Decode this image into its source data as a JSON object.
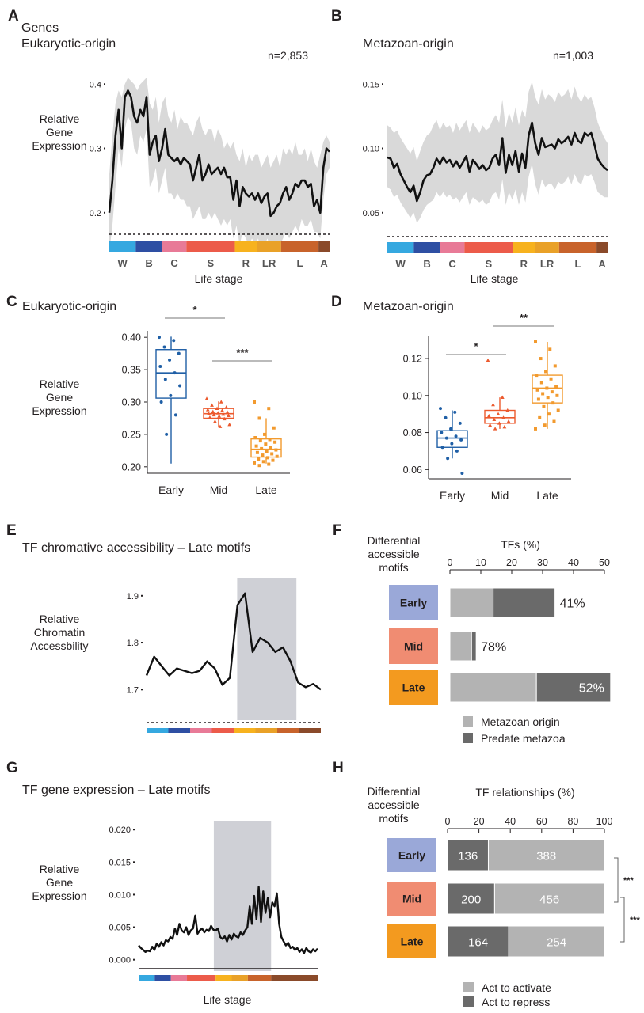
{
  "colors": {
    "early_box": "#1f5fa6",
    "mid_box": "#ec5a2e",
    "late_box": "#f29a2e",
    "row_early": "#9aa8d8",
    "row_mid": "#f08c72",
    "row_late": "#f39a1f",
    "bar_light": "#b3b3b3",
    "bar_dark": "#6a6a6a",
    "highlight": "#cfd0d6",
    "ribbon": "#d9d9d9"
  },
  "stage_colors": [
    "#35a8e0",
    "#2e4fa3",
    "#e87a97",
    "#ec5b4a",
    "#f7b21e",
    "#e9a128",
    "#c8632b",
    "#8a4a2a"
  ],
  "chart_data": [
    {
      "id": "A",
      "type": "line",
      "panel_label": "A",
      "title_lines": [
        "Genes",
        "Eukaryotic-origin"
      ],
      "n_label": "n=2,853",
      "ylabel_lines": [
        "Relative",
        "Gene",
        "Expression"
      ],
      "ylim": [
        0.18,
        0.42
      ],
      "yticks": [
        "0.2",
        "0.3",
        "0.4"
      ],
      "ytick_values": [
        0.2,
        0.3,
        0.4
      ],
      "xlabel": "Life stage",
      "stage_labels": [
        "W",
        "B",
        "C",
        "S",
        "R",
        "LR",
        "L",
        "A"
      ],
      "stage_bounds": [
        0,
        0.12,
        0.24,
        0.35,
        0.57,
        0.67,
        0.78,
        0.95,
        1
      ],
      "y": [
        0.2,
        0.25,
        0.32,
        0.36,
        0.3,
        0.38,
        0.39,
        0.38,
        0.35,
        0.34,
        0.36,
        0.35,
        0.38,
        0.29,
        0.31,
        0.32,
        0.28,
        0.3,
        0.33,
        0.29,
        0.285,
        0.28,
        0.285,
        0.275,
        0.285,
        0.28,
        0.275,
        0.25,
        0.27,
        0.29,
        0.25,
        0.26,
        0.275,
        0.26,
        0.265,
        0.27,
        0.26,
        0.27,
        0.255,
        0.255,
        0.22,
        0.25,
        0.21,
        0.24,
        0.23,
        0.225,
        0.23,
        0.22,
        0.23,
        0.215,
        0.225,
        0.23,
        0.195,
        0.2,
        0.21,
        0.215,
        0.23,
        0.24,
        0.22,
        0.23,
        0.245,
        0.24,
        0.25,
        0.25,
        0.24,
        0.245,
        0.21,
        0.22,
        0.2,
        0.27,
        0.3,
        0.295
      ],
      "band_upper": [
        0.26,
        0.32,
        0.37,
        0.39,
        0.38,
        0.4,
        0.41,
        0.405,
        0.4,
        0.39,
        0.4,
        0.405,
        0.41,
        0.37,
        0.36,
        0.38,
        0.34,
        0.37,
        0.38,
        0.35,
        0.34,
        0.36,
        0.33,
        0.35,
        0.34,
        0.34,
        0.33,
        0.32,
        0.34,
        0.35,
        0.33,
        0.32,
        0.33,
        0.33,
        0.31,
        0.33,
        0.32,
        0.3,
        0.31,
        0.3,
        0.31,
        0.29,
        0.28,
        0.3,
        0.27,
        0.29,
        0.28,
        0.29,
        0.29,
        0.27,
        0.28,
        0.29,
        0.27,
        0.28,
        0.29,
        0.27,
        0.3,
        0.29,
        0.3,
        0.29,
        0.31,
        0.29,
        0.29,
        0.3,
        0.28,
        0.3,
        0.28,
        0.27,
        0.29,
        0.31,
        0.32,
        0.31
      ],
      "band_lower": [
        0.14,
        0.18,
        0.24,
        0.3,
        0.27,
        0.33,
        0.35,
        0.34,
        0.3,
        0.29,
        0.32,
        0.31,
        0.33,
        0.24,
        0.25,
        0.27,
        0.23,
        0.25,
        0.27,
        0.23,
        0.23,
        0.22,
        0.23,
        0.22,
        0.22,
        0.21,
        0.21,
        0.19,
        0.2,
        0.21,
        0.19,
        0.19,
        0.2,
        0.19,
        0.2,
        0.19,
        0.18,
        0.19,
        0.18,
        0.19,
        0.16,
        0.18,
        0.15,
        0.17,
        0.16,
        0.15,
        0.16,
        0.15,
        0.16,
        0.14,
        0.15,
        0.16,
        0.14,
        0.14,
        0.15,
        0.15,
        0.16,
        0.17,
        0.16,
        0.17,
        0.18,
        0.17,
        0.19,
        0.18,
        0.18,
        0.19,
        0.17,
        0.17,
        0.16,
        0.22,
        0.26,
        0.27
      ]
    },
    {
      "id": "B",
      "type": "line",
      "panel_label": "B",
      "title_lines": [
        "Metazoan-origin"
      ],
      "n_label": "n=1,003",
      "ylabel_lines": [],
      "ylim": [
        0.04,
        0.16
      ],
      "yticks": [
        "0.05",
        "0.10",
        "0.15"
      ],
      "ytick_values": [
        0.05,
        0.1,
        0.15
      ],
      "xlabel": "Life stage",
      "stage_labels": [
        "W",
        "B",
        "C",
        "S",
        "R",
        "LR",
        "L",
        "A"
      ],
      "stage_bounds": [
        0,
        0.12,
        0.24,
        0.35,
        0.57,
        0.67,
        0.78,
        0.95,
        1
      ],
      "y": [
        0.093,
        0.092,
        0.085,
        0.088,
        0.08,
        0.075,
        0.07,
        0.066,
        0.071,
        0.059,
        0.066,
        0.075,
        0.079,
        0.08,
        0.085,
        0.092,
        0.088,
        0.093,
        0.089,
        0.091,
        0.086,
        0.09,
        0.085,
        0.089,
        0.094,
        0.082,
        0.091,
        0.088,
        0.084,
        0.087,
        0.083,
        0.085,
        0.092,
        0.095,
        0.087,
        0.108,
        0.081,
        0.095,
        0.087,
        0.098,
        0.082,
        0.096,
        0.085,
        0.11,
        0.12,
        0.104,
        0.095,
        0.108,
        0.101,
        0.102,
        0.103,
        0.1,
        0.107,
        0.104,
        0.106,
        0.109,
        0.103,
        0.112,
        0.106,
        0.104,
        0.112,
        0.11,
        0.112,
        0.103,
        0.092,
        0.088,
        0.085,
        0.083
      ],
      "band_upper": [
        0.118,
        0.116,
        0.112,
        0.114,
        0.108,
        0.104,
        0.1,
        0.096,
        0.101,
        0.09,
        0.098,
        0.105,
        0.11,
        0.112,
        0.118,
        0.122,
        0.114,
        0.12,
        0.116,
        0.118,
        0.112,
        0.12,
        0.114,
        0.118,
        0.122,
        0.112,
        0.12,
        0.116,
        0.112,
        0.118,
        0.114,
        0.116,
        0.122,
        0.126,
        0.12,
        0.138,
        0.116,
        0.128,
        0.12,
        0.132,
        0.118,
        0.13,
        0.124,
        0.144,
        0.152,
        0.14,
        0.134,
        0.146,
        0.138,
        0.142,
        0.14,
        0.136,
        0.144,
        0.14,
        0.142,
        0.146,
        0.138,
        0.148,
        0.14,
        0.136,
        0.142,
        0.138,
        0.14,
        0.132,
        0.12,
        0.114,
        0.108,
        0.104
      ],
      "band_lower": [
        0.07,
        0.068,
        0.062,
        0.064,
        0.058,
        0.054,
        0.05,
        0.046,
        0.05,
        0.042,
        0.046,
        0.052,
        0.056,
        0.058,
        0.06,
        0.066,
        0.062,
        0.066,
        0.062,
        0.064,
        0.06,
        0.062,
        0.058,
        0.062,
        0.066,
        0.056,
        0.062,
        0.06,
        0.058,
        0.06,
        0.056,
        0.058,
        0.064,
        0.066,
        0.06,
        0.076,
        0.056,
        0.066,
        0.06,
        0.068,
        0.056,
        0.066,
        0.058,
        0.078,
        0.088,
        0.072,
        0.064,
        0.076,
        0.07,
        0.072,
        0.072,
        0.068,
        0.074,
        0.072,
        0.074,
        0.078,
        0.072,
        0.08,
        0.074,
        0.072,
        0.08,
        0.078,
        0.08,
        0.074,
        0.066,
        0.064,
        0.062,
        0.062
      ]
    },
    {
      "id": "C",
      "type": "box",
      "panel_label": "C",
      "title": "Eukaryotic-origin",
      "ylabel_lines": [
        "Relative",
        "Gene",
        "Expression"
      ],
      "ylim": [
        0.19,
        0.41
      ],
      "yticks": [
        "0.20",
        "0.25",
        "0.30",
        "0.35",
        "0.40"
      ],
      "ytick_values": [
        0.2,
        0.25,
        0.3,
        0.35,
        0.4
      ],
      "categories": [
        "Early",
        "Mid",
        "Late"
      ],
      "boxes": [
        {
          "min": 0.205,
          "q1": 0.306,
          "median": 0.345,
          "q3": 0.381,
          "max": 0.401
        },
        {
          "min": 0.262,
          "q1": 0.275,
          "median": 0.282,
          "q3": 0.29,
          "max": 0.301
        },
        {
          "min": 0.205,
          "q1": 0.215,
          "median": 0.227,
          "q3": 0.243,
          "max": 0.275
        }
      ],
      "points": [
        [
          0.4,
          0.395,
          0.385,
          0.375,
          0.365,
          0.355,
          0.345,
          0.335,
          0.325,
          0.31,
          0.3,
          0.28,
          0.25
        ],
        [
          0.305,
          0.3,
          0.295,
          0.292,
          0.29,
          0.288,
          0.287,
          0.285,
          0.284,
          0.283,
          0.282,
          0.281,
          0.28,
          0.279,
          0.278,
          0.276,
          0.274,
          0.27,
          0.265,
          0.262
        ],
        [
          0.3,
          0.29,
          0.275,
          0.26,
          0.25,
          0.245,
          0.242,
          0.24,
          0.238,
          0.235,
          0.232,
          0.23,
          0.228,
          0.226,
          0.224,
          0.222,
          0.22,
          0.218,
          0.216,
          0.214,
          0.212,
          0.21,
          0.208,
          0.206,
          0.204,
          0.202
        ]
      ],
      "significance": [
        {
          "pair": [
            0,
            1
          ],
          "label": "*"
        },
        {
          "pair": [
            1,
            2
          ],
          "label": "***"
        }
      ]
    },
    {
      "id": "D",
      "type": "box",
      "panel_label": "D",
      "title": "Metazoan-origin",
      "ylabel_lines": [],
      "ylim": [
        0.055,
        0.132
      ],
      "yticks": [
        "0.06",
        "0.08",
        "0.10",
        "0.12"
      ],
      "ytick_values": [
        0.06,
        0.08,
        0.1,
        0.12
      ],
      "categories": [
        "Early",
        "Mid",
        "Late"
      ],
      "boxes": [
        {
          "min": 0.066,
          "q1": 0.072,
          "median": 0.077,
          "q3": 0.081,
          "max": 0.092
        },
        {
          "min": 0.082,
          "q1": 0.085,
          "median": 0.088,
          "q3": 0.092,
          "max": 0.099
        },
        {
          "min": 0.082,
          "q1": 0.096,
          "median": 0.104,
          "q3": 0.111,
          "max": 0.129
        }
      ],
      "points": [
        [
          0.093,
          0.091,
          0.088,
          0.085,
          0.082,
          0.08,
          0.078,
          0.077,
          0.076,
          0.074,
          0.072,
          0.07,
          0.066,
          0.058
        ],
        [
          0.119,
          0.099,
          0.095,
          0.092,
          0.09,
          0.089,
          0.088,
          0.087,
          0.086,
          0.085,
          0.084,
          0.083,
          0.082
        ],
        [
          0.129,
          0.125,
          0.12,
          0.116,
          0.113,
          0.111,
          0.109,
          0.107,
          0.105,
          0.104,
          0.103,
          0.102,
          0.101,
          0.1,
          0.099,
          0.098,
          0.096,
          0.094,
          0.092,
          0.09,
          0.088,
          0.086,
          0.084,
          0.082
        ]
      ],
      "significance": [
        {
          "pair": [
            0,
            1
          ],
          "label": "*"
        },
        {
          "pair": [
            1,
            2
          ],
          "label": "**"
        }
      ]
    },
    {
      "id": "E",
      "type": "line",
      "panel_label": "E",
      "title": "TF chromative accessibility – Late motifs",
      "ylabel_lines": [
        "Relative",
        "Chromatin",
        "Accessbility"
      ],
      "ylim": [
        1.66,
        1.93
      ],
      "yticks": [
        "1.7",
        "1.8",
        "1.9"
      ],
      "ytick_values": [
        1.7,
        1.8,
        1.9
      ],
      "highlight_x_range": [
        0.52,
        0.86
      ],
      "y": [
        1.73,
        1.77,
        1.75,
        1.73,
        1.745,
        1.74,
        1.735,
        1.74,
        1.76,
        1.745,
        1.71,
        1.725,
        1.88,
        1.905,
        1.78,
        1.81,
        1.8,
        1.78,
        1.79,
        1.76,
        1.715,
        1.705,
        1.712,
        1.7
      ]
    },
    {
      "id": "F",
      "type": "bar",
      "orientation": "horizontal-stacked",
      "panel_label": "F",
      "row_header_lines": [
        "Differential",
        "accessible",
        "motifs"
      ],
      "xlabel": "TFs (%)",
      "xlim": [
        0,
        50
      ],
      "xticks": [
        "0",
        "10",
        "20",
        "30",
        "40",
        "50"
      ],
      "xtick_values": [
        0,
        10,
        20,
        30,
        40,
        50
      ],
      "categories": [
        "Early",
        "Mid",
        "Late"
      ],
      "series": [
        {
          "name": "Metazoan origin",
          "values": [
            14,
            7,
            28
          ]
        },
        {
          "name": "Predate metazoa",
          "values": [
            20,
            1.5,
            24
          ]
        }
      ],
      "labels": [
        "41%",
        "78%",
        "52%"
      ]
    },
    {
      "id": "G",
      "type": "line",
      "panel_label": "G",
      "title": "TF gene expression – Late motifs",
      "ylabel_lines": [
        "Relative",
        "Gene",
        "Expression"
      ],
      "xlabel": "Life stage",
      "ylim": [
        -0.0015,
        0.021
      ],
      "yticks": [
        "0.000",
        "0.005",
        "0.010",
        "0.015",
        "0.020"
      ],
      "ytick_values": [
        0.0,
        0.005,
        0.01,
        0.015,
        0.02
      ],
      "highlight_x_range": [
        0.42,
        0.74
      ],
      "stage_bounds": [
        0,
        0.09,
        0.18,
        0.27,
        0.43,
        0.52,
        0.61,
        0.74,
        1
      ],
      "y": [
        0.0022,
        0.0018,
        0.0015,
        0.0012,
        0.0014,
        0.0013,
        0.002,
        0.0015,
        0.0025,
        0.002,
        0.0027,
        0.0022,
        0.003,
        0.0028,
        0.0035,
        0.0032,
        0.0048,
        0.0038,
        0.0055,
        0.0045,
        0.0042,
        0.005,
        0.0038,
        0.0045,
        0.0048,
        0.0068,
        0.004,
        0.0045,
        0.0048,
        0.0042,
        0.0046,
        0.0044,
        0.0052,
        0.0046,
        0.0045,
        0.0048,
        0.0035,
        0.0032,
        0.0036,
        0.0028,
        0.0038,
        0.0031,
        0.004,
        0.0036,
        0.0034,
        0.0042,
        0.0038,
        0.0045,
        0.005,
        0.0082,
        0.0055,
        0.0098,
        0.0062,
        0.0112,
        0.0058,
        0.0105,
        0.0072,
        0.0095,
        0.0065,
        0.0088,
        0.0082,
        0.0102,
        0.0055,
        0.0035,
        0.0028,
        0.0022,
        0.0026,
        0.0018,
        0.002,
        0.0015,
        0.0018,
        0.0012,
        0.0016,
        0.001,
        0.0018,
        0.0013,
        0.0011,
        0.0016,
        0.0013,
        0.0017
      ]
    },
    {
      "id": "H",
      "type": "bar",
      "orientation": "horizontal-stacked",
      "panel_label": "H",
      "row_header_lines": [
        "Differential",
        "accessible",
        "motifs"
      ],
      "xlabel": "TF relationships (%)",
      "xlim": [
        0,
        100
      ],
      "xticks": [
        "0",
        "20",
        "40",
        "60",
        "80",
        "100"
      ],
      "xtick_values": [
        0,
        20,
        40,
        60,
        80,
        100
      ],
      "categories": [
        "Early",
        "Mid",
        "Late"
      ],
      "series": [
        {
          "name": "Act to repress",
          "values": [
            26,
            30,
            39
          ],
          "counts": [
            "136",
            "200",
            "164"
          ]
        },
        {
          "name": "Act to activate",
          "values": [
            74,
            70,
            61
          ],
          "counts": [
            "388",
            "456",
            "254"
          ]
        }
      ],
      "significance": [
        {
          "pair": [
            0,
            1
          ],
          "label": "***"
        },
        {
          "pair": [
            1,
            2
          ],
          "label": "***"
        }
      ],
      "legend": [
        "Act to activate",
        "Act to repress"
      ]
    }
  ]
}
